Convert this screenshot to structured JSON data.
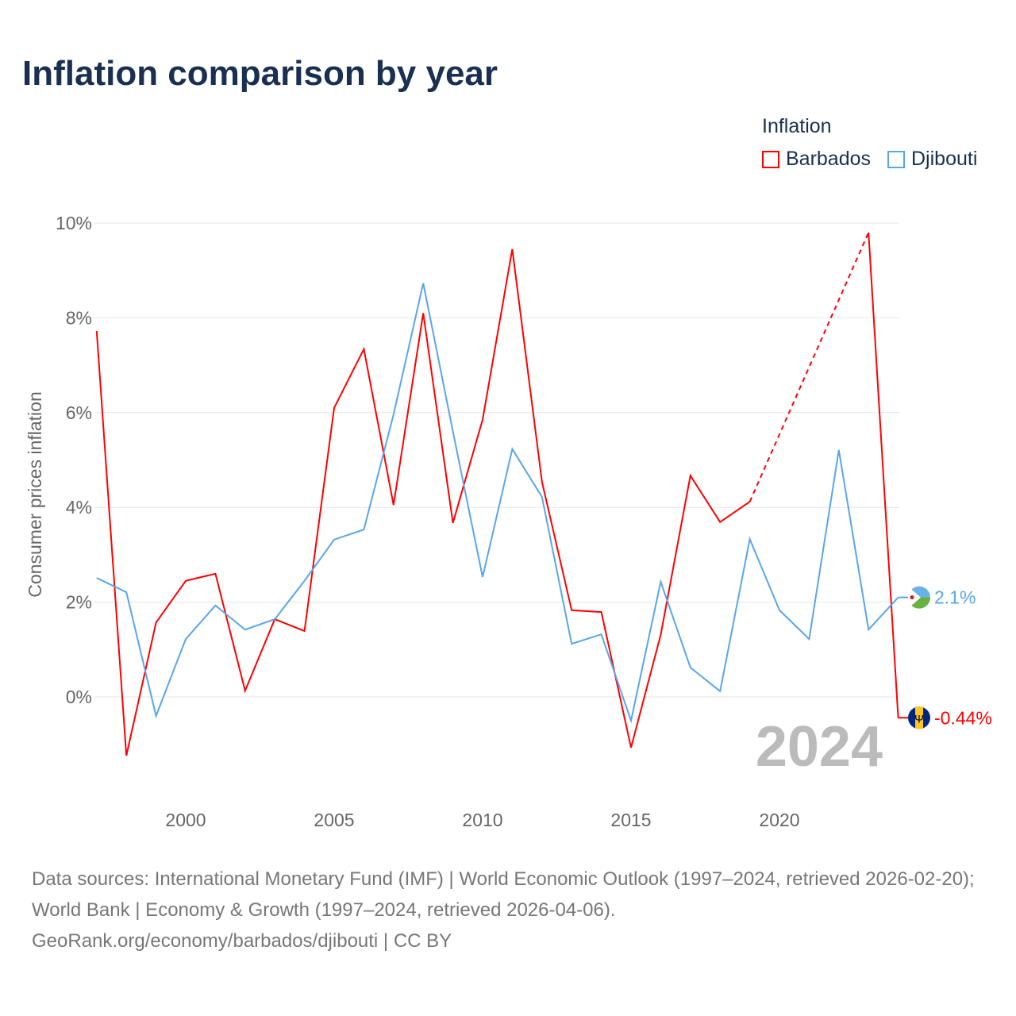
{
  "chart_data": {
    "type": "line",
    "title": "Inflation comparison by year",
    "ylabel": "Consumer prices inflation",
    "xlabel": "",
    "legend_title": "Inflation",
    "legend_position": "top-right",
    "x": [
      1997,
      1998,
      1999,
      2000,
      2001,
      2002,
      2003,
      2004,
      2005,
      2006,
      2007,
      2008,
      2009,
      2010,
      2011,
      2012,
      2013,
      2014,
      2015,
      2016,
      2017,
      2018,
      2019,
      2020,
      2021,
      2022,
      2023,
      2024
    ],
    "xticks": [
      2000,
      2005,
      2010,
      2015,
      2020
    ],
    "xtick_labels": [
      "2000",
      "2005",
      "2010",
      "2015",
      "2020"
    ],
    "yticks": [
      0,
      2,
      4,
      6,
      8,
      10
    ],
    "ytick_labels": [
      "0%",
      "2%",
      "4%",
      "6%",
      "8%",
      "10%"
    ],
    "xlim": [
      1997,
      2024
    ],
    "ylim": [
      -2,
      10
    ],
    "grid": true,
    "year_label": "2024",
    "series": [
      {
        "name": "Barbados",
        "color": "#ff0000",
        "end_label": "-0.44%",
        "values": [
          7.72,
          -1.24,
          1.57,
          2.45,
          2.6,
          0.13,
          1.64,
          1.39,
          6.1,
          7.34,
          4.05,
          8.1,
          3.67,
          5.85,
          9.45,
          4.54,
          1.83,
          1.79,
          -1.07,
          1.31,
          4.67,
          3.69,
          4.12,
          null,
          null,
          null,
          9.8,
          -0.44
        ]
      },
      {
        "name": "Djibouti",
        "color": "#5aa5ea",
        "end_label": "2.1%",
        "values": [
          2.51,
          2.21,
          -0.4,
          1.22,
          1.93,
          1.42,
          1.64,
          2.45,
          3.32,
          3.53,
          5.96,
          8.73,
          5.6,
          2.53,
          5.23,
          4.22,
          1.12,
          1.32,
          -0.5,
          2.43,
          0.62,
          0.12,
          3.33,
          1.83,
          1.22,
          5.21,
          1.42,
          2.1
        ]
      }
    ]
  },
  "source": {
    "line1": "Data sources: International Monetary Fund (IMF) | World Economic Outlook (1997–2024, retrieved 2026-02-20); World Bank | Economy & Growth (1997–2024, retrieved 2026-04-06).",
    "line2": "GeoRank.org/economy/barbados/djibouti | CC BY"
  }
}
